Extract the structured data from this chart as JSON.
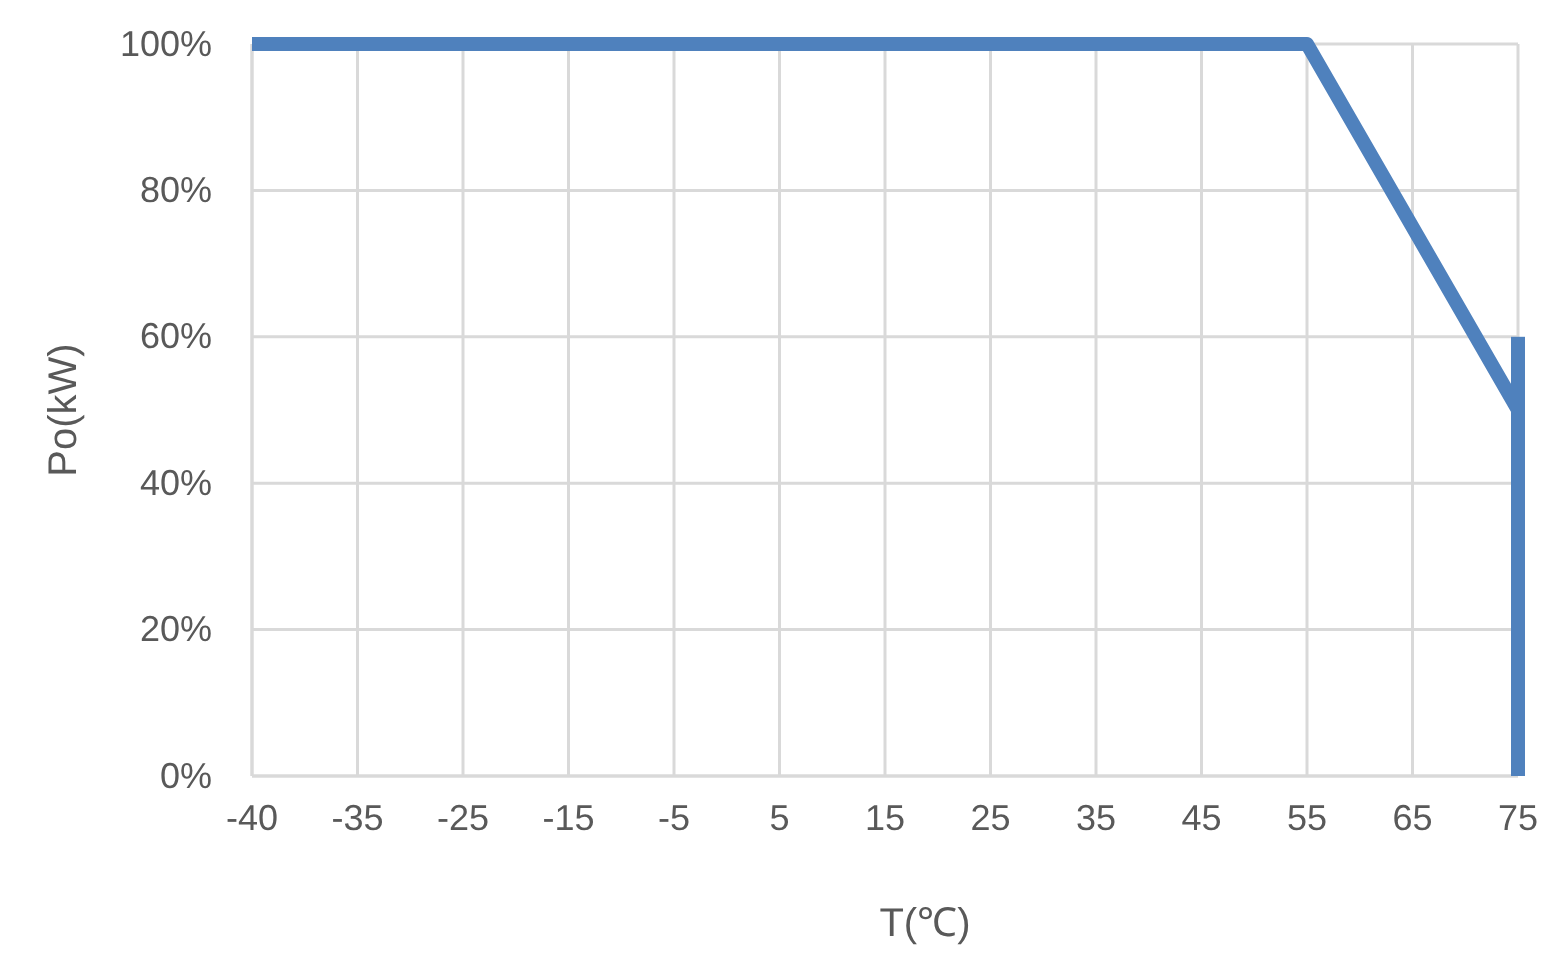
{
  "chart_data": {
    "type": "line",
    "xlabel": "T(℃)",
    "ylabel": "Po(kW)",
    "categories": [
      "-40",
      "-35",
      "-25",
      "-15",
      "-5",
      "5",
      "15",
      "25",
      "35",
      "45",
      "55",
      "65",
      "75"
    ],
    "series": [
      {
        "color": "#4f81bd",
        "values": [
          100,
          100,
          100,
          100,
          100,
          100,
          100,
          100,
          100,
          100,
          100,
          75,
          50
        ]
      },
      {
        "type": "bar",
        "color": "#4f81bd",
        "values": [
          null,
          null,
          null,
          null,
          null,
          null,
          null,
          null,
          null,
          null,
          null,
          null,
          60
        ]
      }
    ],
    "ylim": [
      0,
      100
    ],
    "yticks": [
      {
        "value": 0,
        "label": "0%"
      },
      {
        "value": 20,
        "label": "20%"
      },
      {
        "value": 40,
        "label": "40%"
      },
      {
        "value": 60,
        "label": "60%"
      },
      {
        "value": 80,
        "label": "80%"
      },
      {
        "value": 100,
        "label": "100%"
      }
    ],
    "grid": true,
    "marker": "none",
    "line_style": "solid"
  }
}
